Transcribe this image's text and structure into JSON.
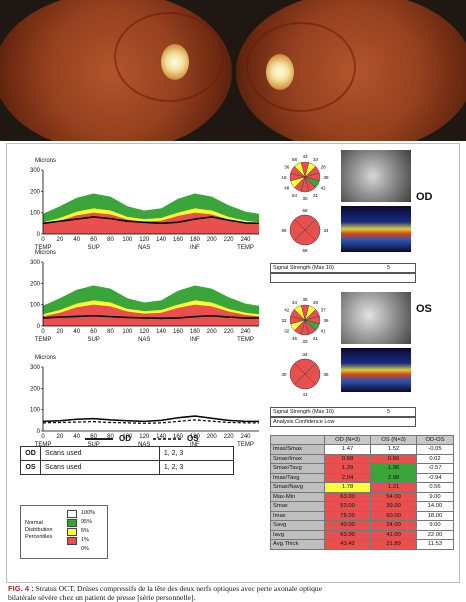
{
  "fundus": {
    "od_label": "",
    "os_label": ""
  },
  "charts": [
    {
      "id": "od",
      "ylabel": "Microns",
      "yticks": [
        "300",
        "200",
        "100",
        "0"
      ],
      "xticks": [
        "0",
        "20",
        "40",
        "60",
        "80",
        "100",
        "120",
        "140",
        "160",
        "180",
        "200",
        "220",
        "240"
      ],
      "regions": [
        "TEMP",
        "SUP",
        "NAS",
        "INF",
        "TEMP"
      ]
    },
    {
      "id": "os",
      "ylabel": "Microns",
      "yticks": [
        "300",
        "200",
        "100",
        "0"
      ],
      "xticks": [
        "0",
        "20",
        "40",
        "60",
        "80",
        "100",
        "120",
        "140",
        "160",
        "180",
        "200",
        "220",
        "240"
      ],
      "regions": [
        "TEMP",
        "SUP",
        "NAS",
        "INF",
        "TEMP"
      ]
    },
    {
      "id": "both",
      "ylabel": "Microns",
      "yticks": [
        "300",
        "200",
        "100",
        "0"
      ],
      "xticks": [
        "0",
        "20",
        "40",
        "60",
        "80",
        "100",
        "120",
        "140",
        "160",
        "180",
        "200",
        "220",
        "240"
      ],
      "regions": [
        "TEMP",
        "SUP",
        "NAS",
        "INF",
        "TEMP"
      ]
    }
  ],
  "chart_data": [
    {
      "type": "area",
      "title": "",
      "xlabel": "",
      "ylabel": "Microns",
      "ylim": [
        0,
        300
      ],
      "xlim": [
        0,
        256
      ],
      "x": [
        0,
        20,
        40,
        60,
        80,
        100,
        120,
        140,
        160,
        180,
        200,
        220,
        240,
        256
      ],
      "series": [
        {
          "name": "95%",
          "values": [
            95,
            130,
            170,
            190,
            175,
            130,
            110,
            120,
            165,
            190,
            175,
            135,
            105,
            95
          ]
        },
        {
          "name": "5%",
          "values": [
            55,
            75,
            105,
            120,
            110,
            80,
            70,
            75,
            100,
            120,
            110,
            80,
            62,
            55
          ]
        },
        {
          "name": "1%",
          "values": [
            45,
            62,
            88,
            100,
            92,
            68,
            58,
            62,
            85,
            100,
            92,
            68,
            52,
            45
          ]
        },
        {
          "name": "OD",
          "values": [
            50,
            60,
            70,
            80,
            72,
            60,
            55,
            50,
            55,
            70,
            80,
            65,
            52,
            50
          ]
        }
      ]
    },
    {
      "type": "area",
      "title": "",
      "xlabel": "",
      "ylabel": "Microns",
      "ylim": [
        0,
        300
      ],
      "xlim": [
        0,
        256
      ],
      "x": [
        0,
        20,
        40,
        60,
        80,
        100,
        120,
        140,
        160,
        180,
        200,
        220,
        240,
        256
      ],
      "series": [
        {
          "name": "95%",
          "values": [
            95,
            130,
            170,
            190,
            175,
            130,
            110,
            120,
            165,
            190,
            175,
            135,
            105,
            95
          ]
        },
        {
          "name": "5%",
          "values": [
            55,
            75,
            105,
            120,
            110,
            80,
            70,
            75,
            100,
            120,
            110,
            80,
            62,
            55
          ]
        },
        {
          "name": "1%",
          "values": [
            45,
            62,
            88,
            100,
            92,
            68,
            58,
            62,
            85,
            100,
            92,
            68,
            52,
            45
          ]
        },
        {
          "name": "OS",
          "values": [
            38,
            42,
            45,
            48,
            44,
            40,
            38,
            36,
            38,
            44,
            48,
            42,
            38,
            38
          ]
        }
      ]
    },
    {
      "type": "line",
      "title": "",
      "xlabel": "",
      "ylabel": "Microns",
      "ylim": [
        0,
        300
      ],
      "xlim": [
        0,
        256
      ],
      "x": [
        0,
        20,
        40,
        60,
        80,
        100,
        120,
        140,
        160,
        180,
        200,
        220,
        240,
        256
      ],
      "series": [
        {
          "name": "OD",
          "values": [
            45,
            48,
            55,
            58,
            52,
            48,
            45,
            50,
            62,
            70,
            60,
            50,
            45,
            45
          ]
        },
        {
          "name": "OS",
          "values": [
            38,
            40,
            42,
            44,
            40,
            38,
            36,
            38,
            45,
            52,
            46,
            40,
            38,
            38
          ]
        }
      ]
    }
  ],
  "clock_od": {
    "numbers": [
      "43",
      "34",
      "28",
      "39",
      "42",
      "21",
      "30",
      "54",
      "48",
      "16",
      "36",
      "58"
    ],
    "quadrants": [
      "68",
      "34",
      "58",
      "59"
    ]
  },
  "clock_os": {
    "numbers": [
      "38",
      "26",
      "37",
      "36",
      "41",
      "21",
      "33",
      "46",
      "32",
      "33",
      "42",
      "34"
    ],
    "quadrants": [
      "34",
      "36",
      "41",
      "40"
    ]
  },
  "od": {
    "eye_label": "OD",
    "signal_label": "Signal Strength (Max 10)",
    "signal_value": "5",
    "confidence": ""
  },
  "os": {
    "eye_label": "OS",
    "signal_label": "Signal Strength (Max 10)",
    "signal_value": "5",
    "confidence": "Analysis Confidence Low"
  },
  "line_legend": {
    "od": "OD",
    "os": "OS"
  },
  "scans": [
    {
      "eye": "OD",
      "label": "Scans used",
      "value": "1, 2, 3"
    },
    {
      "eye": "OS",
      "label": "Scans used",
      "value": "1, 2, 3"
    }
  ],
  "percentile_legend": {
    "label": [
      "Normal",
      "Distribution",
      "Percentiles"
    ],
    "levels": [
      {
        "label": "100%",
        "color": "#ffffff"
      },
      {
        "label": "95%",
        "color": "#3aa53a"
      },
      {
        "label": "5%",
        "color": "#ffff33"
      },
      {
        "label": "1%",
        "color": "#e85050"
      },
      {
        "label": "0%",
        "color": "#ffffff"
      }
    ]
  },
  "ratio_table": {
    "headers": [
      "",
      "OD (N=3)",
      "OS (N=3)",
      "OD-OS"
    ],
    "rows": [
      {
        "name": "Imax/Smax",
        "od": "1.47",
        "os": "1.52",
        "diff": "-0.05",
        "od_color": "#ffffff",
        "os_color": "#ffffff"
      },
      {
        "name": "Smax/Imax",
        "od": "0.68",
        "os": "0.66",
        "diff": "0.02",
        "od_color": "#e85050",
        "os_color": "#e85050"
      },
      {
        "name": "Smax/Tavg",
        "od": "1.39",
        "os": "1.96",
        "diff": "-0.57",
        "od_color": "#e85050",
        "os_color": "#3aa53a"
      },
      {
        "name": "Imax/Tavg",
        "od": "2.04",
        "os": "2.98",
        "diff": "-0.94",
        "od_color": "#e85050",
        "os_color": "#3aa53a"
      },
      {
        "name": "Smax/Navg",
        "od": "1.78",
        "os": "1.21",
        "diff": "0.56",
        "od_color": "#ffff33",
        "os_color": "#e85050"
      },
      {
        "name": "Max-Min",
        "od": "63.00",
        "os": "54.00",
        "diff": "9.00",
        "od_color": "#e85050",
        "os_color": "#e85050"
      },
      {
        "name": "Smax",
        "od": "53.00",
        "os": "39.00",
        "diff": "14.00",
        "od_color": "#e85050",
        "os_color": "#e85050"
      },
      {
        "name": "Imax",
        "od": "78.00",
        "os": "60.00",
        "diff": "18.00",
        "od_color": "#e85050",
        "os_color": "#e85050"
      },
      {
        "name": "Savg",
        "od": "43.00",
        "os": "34.00",
        "diff": "9.00",
        "od_color": "#e85050",
        "os_color": "#e85050"
      },
      {
        "name": "Iavg",
        "od": "63.00",
        "os": "41.00",
        "diff": "22.00",
        "od_color": "#e85050",
        "os_color": "#e85050"
      },
      {
        "name": "Avg.Thick",
        "od": "43.42",
        "os": "31.89",
        "diff": "11.53",
        "od_color": "#e85050",
        "os_color": "#e85050"
      }
    ]
  },
  "caption": {
    "fig": "FIG. 4 :",
    "text": " Stratus OCT. Drüses compressifs de la tête des deux nerfs optiques avec perte axonale optique",
    "text2": "bilatérale sévère chez un patient de presse [série personnelle]."
  }
}
